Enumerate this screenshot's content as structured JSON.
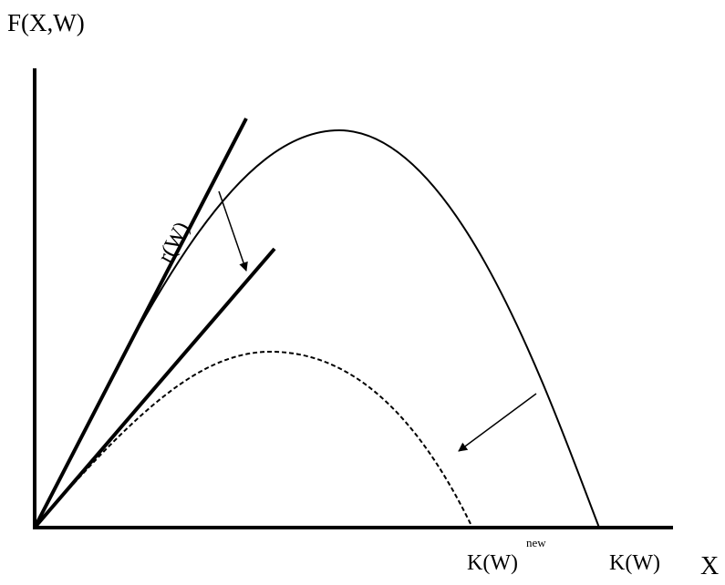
{
  "axes": {
    "y_label": "F(X,W)",
    "x_label": "X"
  },
  "annotations": {
    "slope_label": "r(W)",
    "k_new": "K(W)",
    "k_new_sup": "new",
    "k": "K(W)"
  }
}
